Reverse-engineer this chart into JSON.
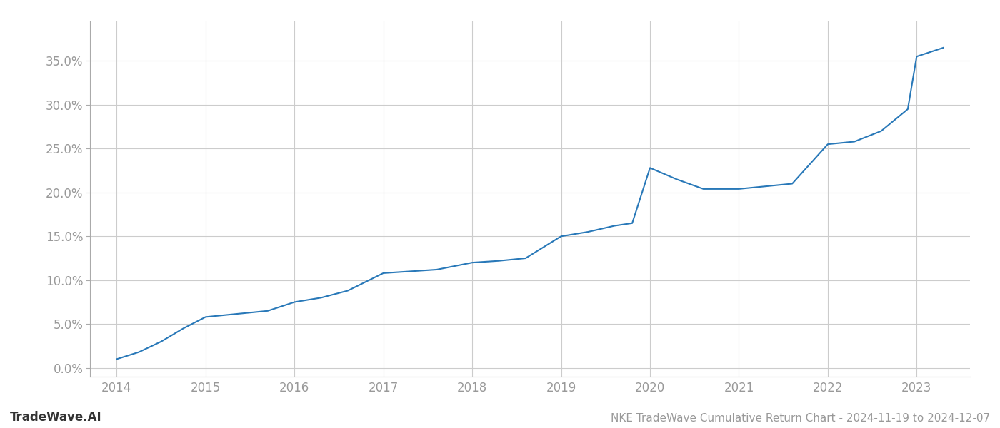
{
  "title": "NKE TradeWave Cumulative Return Chart - 2024-11-19 to 2024-12-07",
  "watermark": "TradeWave.AI",
  "line_color": "#2878b8",
  "line_width": 1.5,
  "background_color": "#ffffff",
  "grid_color": "#cccccc",
  "x_values": [
    2014.0,
    2014.25,
    2014.5,
    2014.75,
    2015.0,
    2015.2,
    2015.4,
    2015.7,
    2016.0,
    2016.3,
    2016.6,
    2017.0,
    2017.3,
    2017.6,
    2018.0,
    2018.3,
    2018.6,
    2019.0,
    2019.3,
    2019.6,
    2019.8,
    2020.0,
    2020.3,
    2020.6,
    2021.0,
    2021.3,
    2021.6,
    2022.0,
    2022.3,
    2022.6,
    2022.9,
    2023.0,
    2023.3
  ],
  "y_values": [
    0.01,
    0.018,
    0.03,
    0.045,
    0.058,
    0.06,
    0.062,
    0.065,
    0.075,
    0.08,
    0.088,
    0.108,
    0.11,
    0.112,
    0.12,
    0.122,
    0.125,
    0.15,
    0.155,
    0.162,
    0.165,
    0.228,
    0.215,
    0.204,
    0.204,
    0.207,
    0.21,
    0.255,
    0.258,
    0.27,
    0.295,
    0.355,
    0.365
  ],
  "xlim": [
    2013.7,
    2023.6
  ],
  "ylim": [
    -0.01,
    0.395
  ],
  "yticks": [
    0.0,
    0.05,
    0.1,
    0.15,
    0.2,
    0.25,
    0.3,
    0.35
  ],
  "xticks": [
    2014,
    2015,
    2016,
    2017,
    2018,
    2019,
    2020,
    2021,
    2022,
    2023
  ],
  "tick_color": "#999999",
  "tick_fontsize": 12,
  "title_fontsize": 11,
  "watermark_fontsize": 12
}
